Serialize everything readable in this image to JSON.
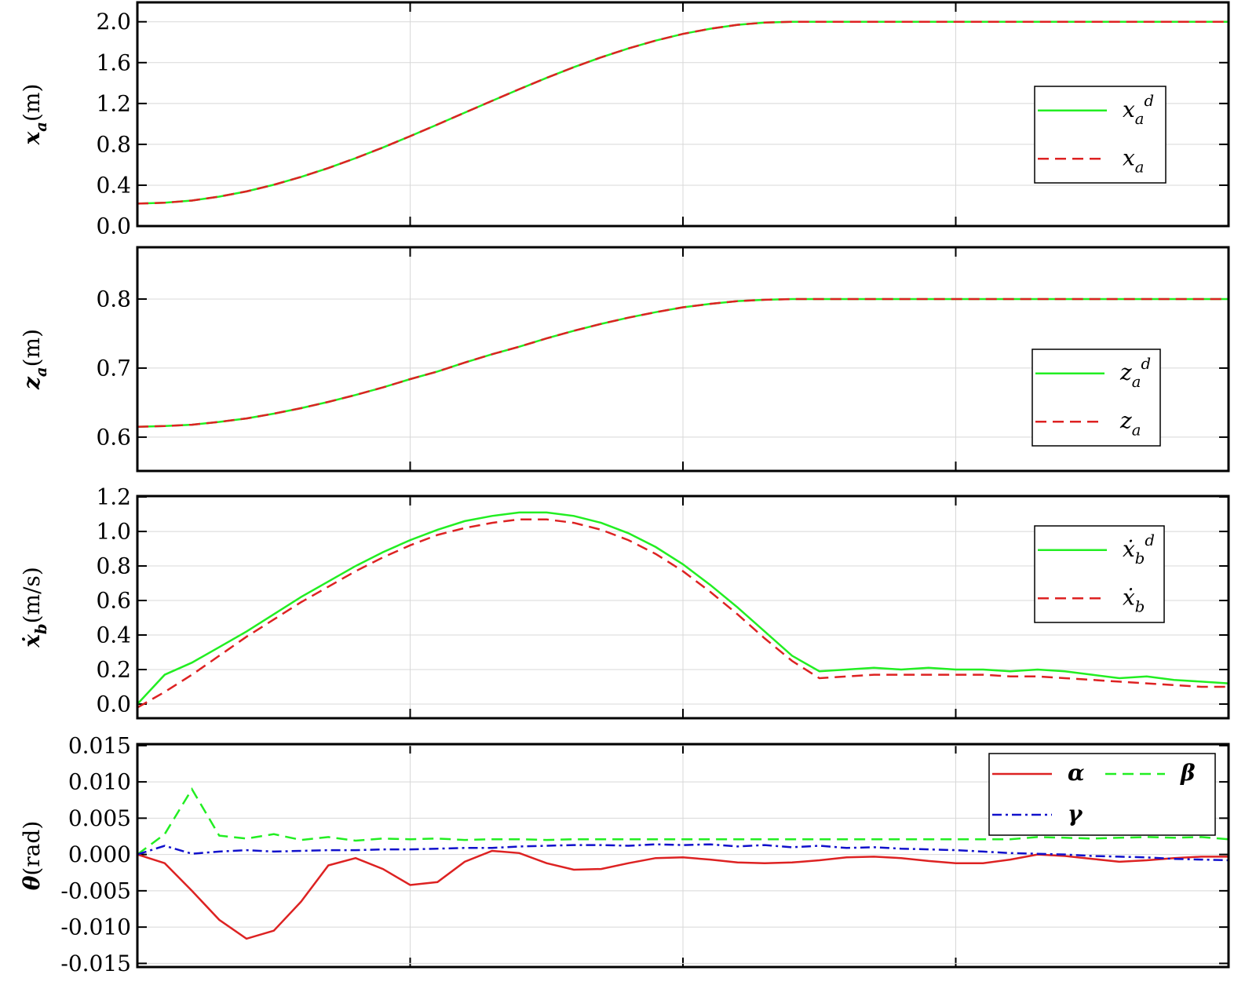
{
  "chart_data": [
    {
      "type": "line",
      "ylabel": "x",
      "ylabel_sub": "a",
      "ylabel_unit": "(m)",
      "ylim": [
        0,
        2.19
      ],
      "yticks": [
        {
          "value": 0,
          "label": "0.0"
        },
        0.4,
        0.8,
        1.2,
        1.6,
        {
          "value": 2,
          "label": "2.0"
        }
      ],
      "grid": true,
      "legend_ncol": 1,
      "series": [
        {
          "name": "x",
          "name_sub": "a",
          "name_sup": "d",
          "color": "#22ee22",
          "dash": "solid",
          "values": [
            0.22,
            0.228,
            0.25,
            0.288,
            0.339,
            0.404,
            0.481,
            0.568,
            0.665,
            0.769,
            0.88,
            0.994,
            1.11,
            1.226,
            1.34,
            1.451,
            1.555,
            1.652,
            1.739,
            1.816,
            1.881,
            1.932,
            1.97,
            1.992,
            2.0,
            2.0,
            2.0,
            2.0,
            2.0,
            2.0,
            2.0,
            2.0,
            2.0,
            2.0,
            2.0,
            2.0,
            2.0,
            2.0,
            2.0,
            2.0,
            2.0
          ]
        },
        {
          "name": "x",
          "name_sub": "a",
          "color": "#dd2222",
          "dash": "dashed",
          "values": [
            0.22,
            0.228,
            0.25,
            0.288,
            0.339,
            0.404,
            0.481,
            0.568,
            0.665,
            0.769,
            0.88,
            0.994,
            1.11,
            1.226,
            1.34,
            1.451,
            1.555,
            1.652,
            1.739,
            1.816,
            1.881,
            1.932,
            1.97,
            1.992,
            2.0,
            2.0,
            2.0,
            2.0,
            2.0,
            2.0,
            2.0,
            2.0,
            2.0,
            2.0,
            2.0,
            2.0,
            2.0,
            2.0,
            2.0,
            2.0,
            2.0
          ]
        }
      ]
    },
    {
      "type": "line",
      "ylabel": "z",
      "ylabel_sub": "a",
      "ylabel_unit": "(m)",
      "ylim": [
        0.551,
        0.875
      ],
      "yticks": [
        0.6,
        0.7,
        0.8
      ],
      "grid": true,
      "legend_ncol": 1,
      "series": [
        {
          "name": "z",
          "name_sub": "a",
          "name_sup": "d",
          "color": "#22ee22",
          "dash": "solid",
          "values": [
            0.615,
            0.616,
            0.618,
            0.622,
            0.627,
            0.634,
            0.642,
            0.651,
            0.661,
            0.672,
            0.684,
            0.695,
            0.708,
            0.72,
            0.731,
            0.743,
            0.754,
            0.764,
            0.773,
            0.781,
            0.788,
            0.793,
            0.797,
            0.799,
            0.8,
            0.8,
            0.8,
            0.8,
            0.8,
            0.8,
            0.8,
            0.8,
            0.8,
            0.8,
            0.8,
            0.8,
            0.8,
            0.8,
            0.8,
            0.8,
            0.8
          ]
        },
        {
          "name": "z",
          "name_sub": "a",
          "color": "#dd2222",
          "dash": "dashed",
          "values": [
            0.615,
            0.616,
            0.618,
            0.622,
            0.627,
            0.634,
            0.642,
            0.651,
            0.661,
            0.672,
            0.684,
            0.695,
            0.708,
            0.72,
            0.731,
            0.743,
            0.754,
            0.764,
            0.773,
            0.781,
            0.788,
            0.793,
            0.797,
            0.799,
            0.8,
            0.8,
            0.8,
            0.8,
            0.8,
            0.8,
            0.8,
            0.8,
            0.8,
            0.8,
            0.8,
            0.8,
            0.8,
            0.8,
            0.8,
            0.8,
            0.8
          ]
        }
      ]
    },
    {
      "type": "line",
      "ylabel": "ẋ",
      "ylabel_sub": "b",
      "ylabel_unit": "(m/s)",
      "ylim": [
        -0.082,
        1.205
      ],
      "yticks": [
        {
          "value": 0,
          "label": "0.0"
        },
        0.2,
        0.4,
        0.6,
        0.8,
        {
          "value": 1,
          "label": "1.0"
        },
        1.2
      ],
      "grid": true,
      "legend_ncol": 1,
      "series": [
        {
          "name": "ẋ",
          "name_sub": "b",
          "name_sup": "d",
          "color": "#22ee22",
          "dash": "solid",
          "values": [
            0.0,
            0.17,
            0.24,
            0.33,
            0.42,
            0.52,
            0.62,
            0.71,
            0.8,
            0.88,
            0.95,
            1.01,
            1.06,
            1.09,
            1.11,
            1.11,
            1.09,
            1.05,
            0.99,
            0.91,
            0.81,
            0.69,
            0.56,
            0.42,
            0.28,
            0.19,
            0.2,
            0.21,
            0.2,
            0.21,
            0.2,
            0.2,
            0.19,
            0.2,
            0.19,
            0.17,
            0.15,
            0.16,
            0.14,
            0.13,
            0.12
          ]
        },
        {
          "name": "ẋ",
          "name_sub": "b",
          "color": "#dd2222",
          "dash": "dashed",
          "values": [
            -0.02,
            0.07,
            0.17,
            0.28,
            0.39,
            0.49,
            0.59,
            0.68,
            0.77,
            0.85,
            0.92,
            0.98,
            1.02,
            1.05,
            1.07,
            1.07,
            1.05,
            1.01,
            0.95,
            0.87,
            0.77,
            0.65,
            0.52,
            0.38,
            0.25,
            0.15,
            0.16,
            0.17,
            0.17,
            0.17,
            0.17,
            0.17,
            0.16,
            0.16,
            0.15,
            0.14,
            0.13,
            0.12,
            0.11,
            0.1,
            0.1
          ]
        }
      ]
    },
    {
      "type": "line",
      "ylabel": "θ",
      "ylabel_unit": "(rad)",
      "ylim": [
        -0.0155,
        0.0152
      ],
      "yticks": [
        -0.015,
        {
          "value": -0.01,
          "label": "-0.010"
        },
        -0.005,
        {
          "value": 0,
          "label": "0.000"
        },
        0.005,
        {
          "value": 0.01,
          "label": "0.010"
        },
        0.015
      ],
      "grid": true,
      "legend_ncol": 2,
      "series": [
        {
          "name": "α",
          "color": "#dd2222",
          "dash": "solid",
          "values": [
            0.0,
            -0.0012,
            -0.005,
            -0.009,
            -0.0116,
            -0.0105,
            -0.0065,
            -0.0015,
            -0.0005,
            -0.002,
            -0.0042,
            -0.0038,
            -0.001,
            0.0005,
            0.0002,
            -0.0012,
            -0.0021,
            -0.002,
            -0.0012,
            -0.0005,
            -0.0004,
            -0.0007,
            -0.0011,
            -0.0012,
            -0.0011,
            -0.0008,
            -0.0004,
            -0.0003,
            -0.0005,
            -0.0009,
            -0.0012,
            -0.0012,
            -0.0007,
            0.0,
            -0.0002,
            -0.0006,
            -0.001,
            -0.0008,
            -0.0005,
            -0.0003,
            -0.0003
          ]
        },
        {
          "name": "β",
          "color": "#22ee22",
          "dash": "dashed",
          "values": [
            0.0,
            0.0028,
            0.009,
            0.0026,
            0.0022,
            0.0028,
            0.002,
            0.0024,
            0.0019,
            0.0022,
            0.0021,
            0.0022,
            0.002,
            0.0021,
            0.0021,
            0.002,
            0.0021,
            0.0021,
            0.0021,
            0.0021,
            0.0021,
            0.0021,
            0.0021,
            0.0021,
            0.0021,
            0.0021,
            0.0021,
            0.0021,
            0.0021,
            0.0021,
            0.0021,
            0.0021,
            0.0021,
            0.0024,
            0.0023,
            0.0022,
            0.0023,
            0.0024,
            0.0023,
            0.0024,
            0.0021
          ]
        },
        {
          "name": "γ",
          "color": "#1111cc",
          "dash": "dashdot",
          "values": [
            0.0,
            0.0012,
            0.0001,
            0.0004,
            0.0006,
            0.0004,
            0.0005,
            0.0006,
            0.0006,
            0.0007,
            0.0007,
            0.0008,
            0.0009,
            0.0009,
            0.0011,
            0.0012,
            0.0013,
            0.0013,
            0.0012,
            0.0014,
            0.0013,
            0.0014,
            0.0011,
            0.0013,
            0.001,
            0.0012,
            0.0009,
            0.001,
            0.0008,
            0.0007,
            0.0006,
            0.0004,
            0.0002,
            0.0001,
            0.0,
            -0.0002,
            -0.0003,
            -0.0004,
            -0.0006,
            -0.0007,
            -0.0008
          ]
        }
      ]
    }
  ]
}
